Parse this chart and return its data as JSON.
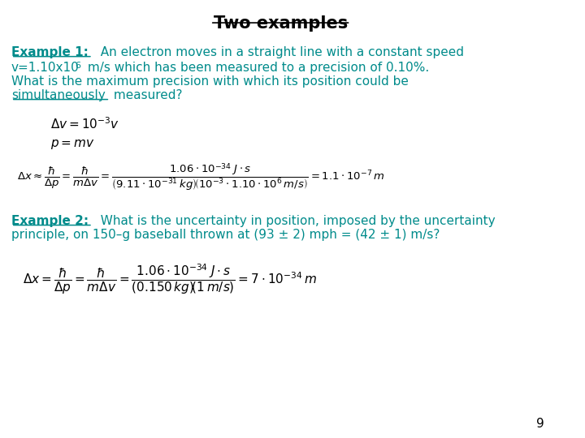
{
  "title": "Two examples",
  "background_color": "#ffffff",
  "teal_color": "#008B8B",
  "black_color": "#000000",
  "page_number": "9",
  "title_fontsize": 15,
  "body_fontsize": 11,
  "eq_fontsize": 11,
  "eq1": "$\\Delta v = 10^{-3}v$",
  "eq2": "$p = mv$",
  "eq3": "$\\Delta x \\approx \\dfrac{\\hbar}{\\Delta p} = \\dfrac{\\hbar}{m\\Delta v} = \\dfrac{1.06\\cdot10^{-34}\\;J\\cdot s}{\\left(9.11\\cdot10^{-31}\\,kg\\right)\\!\\left(10^{-3}\\cdot1.10\\cdot10^{6}\\,m/s\\right)} = 1.1\\cdot10^{-7}\\,m$",
  "eq4": "$\\Delta x = \\dfrac{\\hbar}{\\Delta p} = \\dfrac{\\hbar}{m\\Delta v} = \\dfrac{1.06\\cdot10^{-34}\\;J\\cdot s}{\\left(0.150\\,kg\\right)\\!\\left(1\\,m/s\\right)} = 7\\cdot10^{-34}\\,m$",
  "ex1_line1": "  An electron moves in a straight line with a constant speed",
  "ex1_line2a": "v=1.10x10",
  "ex1_line2sup": "6",
  "ex1_line2b": " m/s which has been measured to a precision of 0.10%.",
  "ex1_line3": "What is the maximum precision with which its position could be",
  "ex1_line4a": "simultaneously",
  "ex1_line4b": " measured?",
  "ex2_line1a": "Example 2:",
  "ex2_line1b": "  What is the uncertainty in position, imposed by the uncertainty",
  "ex2_line2": "principle, on 150–g baseball thrown at (93 ± 2) mph = (42 ± 1) m/s?"
}
